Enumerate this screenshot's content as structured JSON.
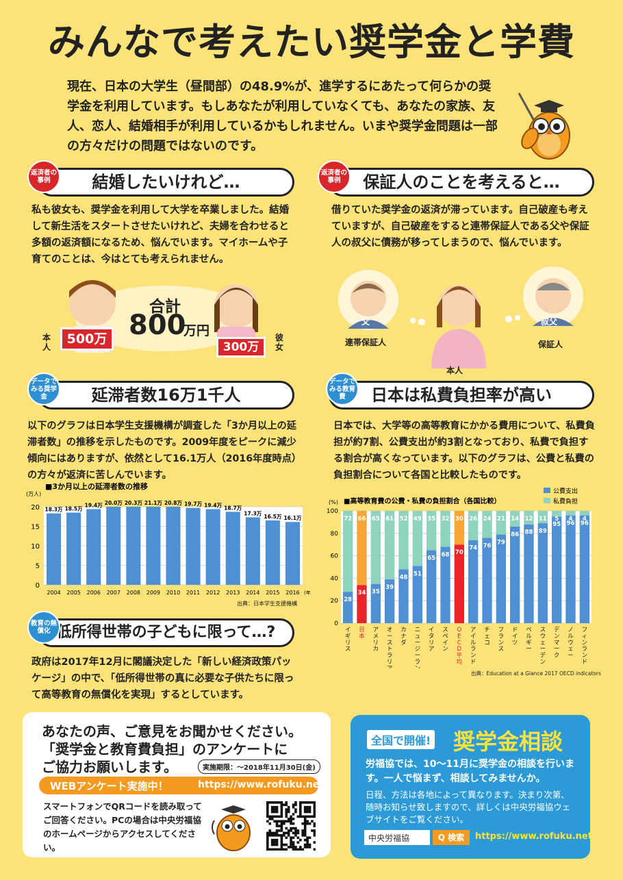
{
  "title": "みんなで考えたい奨学金と学費",
  "intro": "現在、日本の大学生（昼間部）の48.9%が、進学するにあたって何らかの奨学金を利用しています。もしあなたが利用していなくても、あなたの家族、友人、恋人、結婚相手が利用しているかもしれません。いまや奨学金問題は一部の方々だけの問題ではないのです。",
  "case1": {
    "tag": "返済者の事例",
    "heading": "結婚したいけれど…",
    "text": "私も彼女も、奨学金を利用して大学を卒業しました。結婚して新生活をスタートさせたいけれど、夫婦を合わせると多額の返済額になるため、悩んでいます。マイホームや子育てのことは、今はとても考えられません。",
    "label_me": "本人",
    "amount_me": "500万",
    "label_her": "彼女",
    "amount_her": "300万",
    "total_label": "合計",
    "total_num": "800",
    "total_unit": "万円"
  },
  "case2": {
    "tag": "返済者の事例",
    "heading": "保証人のことを考えると…",
    "text": "借りていた奨学金の返済が滞っています。自己破産も考えていますが、自己破産をすると連帯保証人である父や保証人の叔父に債務が移ってしまうので、悩んでいます。",
    "father_badge": "父",
    "father_label": "連帯保証人",
    "uncle_badge": "叔父",
    "uncle_label": "保証人",
    "me_label": "本人"
  },
  "data1": {
    "tag": "データでみる奨学金",
    "heading": "延滞者数16万1千人",
    "text": "以下のグラフは日本学生支援機構が調査した「3か月以上の延滞者数」の推移を示したものです。2009年度をピークに減少傾向にはありますが、依然として16.1万人（2016年度時点）の方々が返済に苦しんでいます。",
    "source": "出典：日本学生支援機構"
  },
  "data2": {
    "tag": "データでみる教育費",
    "heading": "日本は私費負担率が高い",
    "text": "日本では、大学等の高等教育にかかる費用について、私費負担が約7割、公費支出が約3割となっており、私費で負担する割合が高くなっています。以下のグラフは、公費と私費の負担割合について各国と比較したものです。",
    "source": "出典：Education at a Glance 2017 OECD indicators"
  },
  "free": {
    "tag": "教育の無償化",
    "heading": "低所得世帯の子どもに限って…?",
    "text": "政府は2017年12月に閣議決定した「新しい経済政策パッケージ」の中で、「低所得世帯の真に必要な子供たちに限って高等教育の無償化を実現」するとしています。"
  },
  "survey": {
    "line1": "あなたの声、ご意見をお聞かせください。",
    "line2": "「奨学金と教育費負担」のアンケートに",
    "line3": "ご協力お願いします。",
    "deadline": "実施期限：～2018年11月30日(金)",
    "banner": "WEBアンケート実施中！",
    "url": "https://www.rofuku.net",
    "note": "スマートフォンでQRコードを読み取ってご回答ください。PCの場合は中央労福協のホームページからアクセスしてください。"
  },
  "consult": {
    "badge": "全国で開催!",
    "title": "奨学金相談",
    "text1": "労福協では、10～11月に奨学金の相談を行います。一人で悩まず、相談してみませんか。",
    "text2": "日程、方法は各地によって異なります。決まり次第、随時お知らせ致しますので、詳しくは中央労福協ウェブサイトをご覧ください。",
    "search_value": "中央労福協",
    "search_btn": "Q 検索",
    "url": "https://www.rofuku.net"
  },
  "colors": {
    "bg": "#fbe37a",
    "public": "#4f8fd3",
    "private": "#8fd3bf",
    "japan_pub": "#e8262a",
    "japan_priv": "#f7a537"
  },
  "chart_data": [
    {
      "type": "bar",
      "title": "■3か月以上の延滞者数の推移",
      "ylabel": "(万人)",
      "xlabel": "(年度)",
      "ylim": [
        0,
        20
      ],
      "yticks": [
        0,
        5,
        10,
        15,
        20
      ],
      "categories": [
        "2004",
        "2005",
        "2006",
        "2007",
        "2008",
        "2009",
        "2010",
        "2011",
        "2012",
        "2013",
        "2014",
        "2015",
        "2016"
      ],
      "values": [
        18.3,
        18.5,
        19.4,
        20.0,
        20.3,
        21.1,
        20.8,
        19.7,
        19.4,
        18.7,
        17.3,
        16.5,
        16.1
      ],
      "labels": [
        "18.3万",
        "18.5万",
        "19.4万",
        "20.0万",
        "20.3万",
        "21.1万",
        "20.8万",
        "19.7万",
        "19.4万",
        "18.7万",
        "17.3万",
        "16.5万",
        "16.1万"
      ]
    },
    {
      "type": "bar",
      "stacked": true,
      "title": "■高等教育費の公費・私費の負担割合（各国比較）",
      "ylabel": "(%)",
      "ylim": [
        0,
        100
      ],
      "yticks": [
        0,
        20,
        40,
        60,
        80,
        100
      ],
      "legend": [
        "公費支出",
        "私費負担"
      ],
      "categories": [
        "イギリス",
        "日本",
        "アメリカ",
        "オーストラリア",
        "カナダ",
        "ニュージーランド",
        "イタリア",
        "スペイン",
        "OECD平均",
        "アイルランド",
        "チェコ",
        "フランス",
        "ドイツ",
        "ベルギー",
        "スウェーデン",
        "デンマーク",
        "ノルウェー",
        "フィンランド"
      ],
      "series": [
        {
          "name": "公費支出",
          "values": [
            28,
            34,
            35,
            39,
            48,
            51,
            65,
            68,
            70,
            74,
            76,
            79,
            86,
            88,
            89,
            95,
            96,
            96
          ]
        },
        {
          "name": "私費負担",
          "values": [
            72,
            66,
            65,
            61,
            52,
            49,
            35,
            32,
            30,
            26,
            24,
            21,
            14,
            12,
            11,
            5,
            4,
            4
          ]
        }
      ]
    }
  ]
}
